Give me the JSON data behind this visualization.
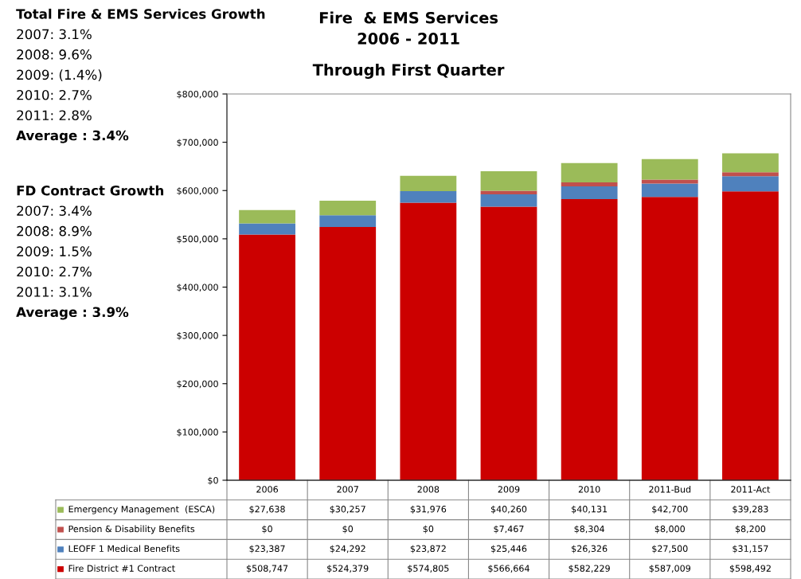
{
  "chart_data": {
    "type": "bar",
    "stacked": true,
    "title": "Fire  & EMS Services\n2006 - 2011",
    "subtitle": "Through First Quarter",
    "categories": [
      "2006",
      "2007",
      "2008",
      "2009",
      "2010",
      "2011-Bud",
      "2011-Act"
    ],
    "series": [
      {
        "name": "Fire District #1 Contract",
        "color": "#cc0000",
        "values": [
          508747,
          524379,
          574805,
          566664,
          582229,
          587009,
          598492
        ],
        "value_labels": [
          "$508,747",
          "$524,379",
          "$574,805",
          "$566,664",
          "$582,229",
          "$587,009",
          "$598,492"
        ]
      },
      {
        "name": "LEOFF 1 Medical Benefits",
        "color": "#4f81bd",
        "values": [
          23387,
          24292,
          23872,
          25446,
          26326,
          27500,
          31157
        ],
        "value_labels": [
          "$23,387",
          "$24,292",
          "$23,872",
          "$25,446",
          "$26,326",
          "$27,500",
          "$31,157"
        ]
      },
      {
        "name": "Pension & Disability Benefits",
        "color": "#c0504d",
        "values": [
          0,
          0,
          0,
          7467,
          8304,
          8000,
          8200
        ],
        "value_labels": [
          "$0",
          "$0",
          "$0",
          "$7,467",
          "$8,304",
          "$8,000",
          "$8,200"
        ]
      },
      {
        "name": "Emergency Management  (ESCA)",
        "color": "#9bbb59",
        "values": [
          27638,
          30257,
          31976,
          40260,
          40131,
          42700,
          39283
        ],
        "value_labels": [
          "$27,638",
          "$30,257",
          "$31,976",
          "$40,260",
          "$40,131",
          "$42,700",
          "$39,283"
        ]
      }
    ],
    "ylim": [
      0,
      800000
    ],
    "yticks": [
      {
        "value": 0,
        "label": "$0"
      },
      {
        "value": 100000,
        "label": "$100,000"
      },
      {
        "value": 200000,
        "label": "$200,000"
      },
      {
        "value": 300000,
        "label": "$300,000"
      },
      {
        "value": 400000,
        "label": "$400,000"
      },
      {
        "value": 500000,
        "label": "$500,000"
      },
      {
        "value": 600000,
        "label": "$600,000"
      },
      {
        "value": 700000,
        "label": "$700,000"
      },
      {
        "value": 800000,
        "label": "$800,000"
      }
    ],
    "grid": false,
    "legend": "bottom",
    "annotations": [
      "Total Fire & EMS Services Growth",
      "2007: 3.1%",
      "2008: 9.6%",
      "2009: (1.4%)",
      "2010: 2.7%",
      "2011: 2.8%",
      "Average : 3.4%",
      "FD Contract Growth",
      "2007: 3.4%",
      "2008: 8.9%",
      "2009: 1.5%",
      "2010: 2.7%",
      "2011: 3.1%",
      "Average : 3.9%"
    ]
  }
}
